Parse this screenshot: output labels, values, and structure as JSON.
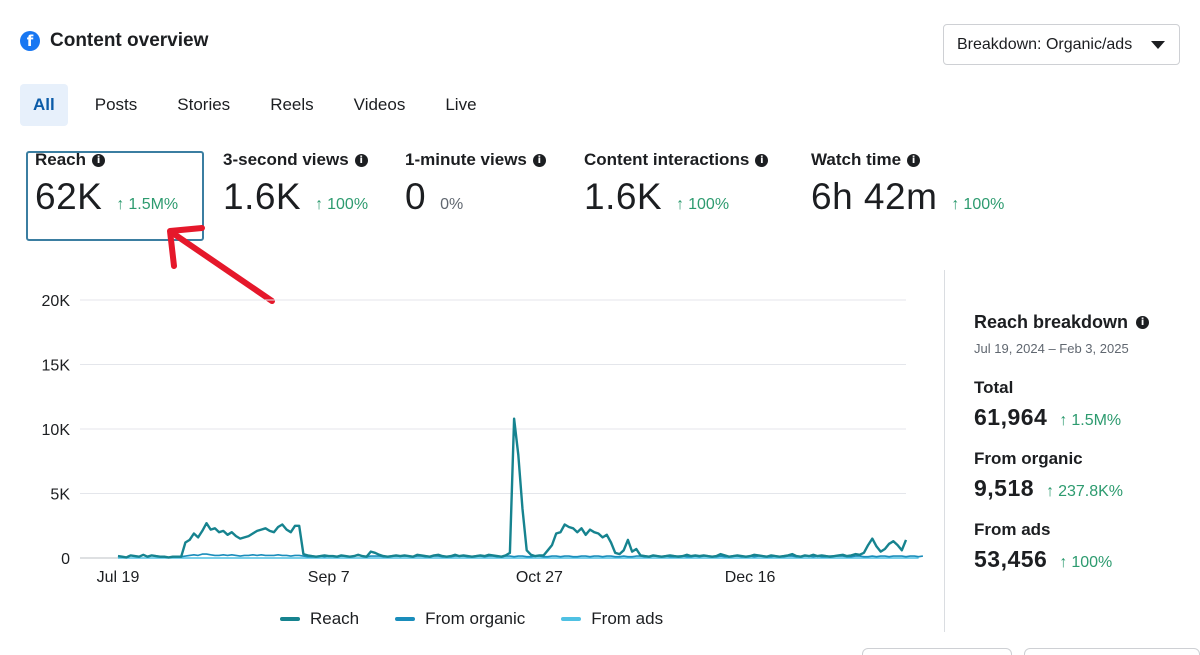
{
  "header": {
    "title": "Content overview",
    "icon": "facebook-icon"
  },
  "breakdown": {
    "label": "Breakdown: Organic/ads"
  },
  "tabs": [
    {
      "label": "All",
      "active": true
    },
    {
      "label": "Posts"
    },
    {
      "label": "Stories"
    },
    {
      "label": "Reels"
    },
    {
      "label": "Videos"
    },
    {
      "label": "Live"
    }
  ],
  "metrics": [
    {
      "label": "Reach",
      "value": "62K",
      "delta": "1.5M%",
      "selected": true
    },
    {
      "label": "3-second views",
      "value": "1.6K",
      "delta": "100%"
    },
    {
      "label": "1-minute views",
      "value": "0",
      "delta": "0%"
    },
    {
      "label": "Content interactions",
      "value": "1.6K",
      "delta": "100%"
    },
    {
      "label": "Watch time",
      "value": "6h 42m",
      "delta": "100%"
    }
  ],
  "side": {
    "title": "Reach breakdown",
    "date_range": "Jul 19, 2024 – Feb 3, 2025",
    "total_label": "Total",
    "total_value": "61,964",
    "total_delta": "1.5M%",
    "organic_label": "From organic",
    "organic_value": "9,518",
    "organic_delta": "237.8K%",
    "ads_label": "From ads",
    "ads_value": "53,456",
    "ads_delta": "100%"
  },
  "colors": {
    "reach": "#16838f",
    "organic": "#1a8dbb",
    "ads": "#4fc1e3",
    "positive": "#2d9b6f",
    "annotation": "#e5182b"
  },
  "chart_data": {
    "type": "line",
    "title": "",
    "xlabel": "",
    "ylabel": "",
    "ylim": [
      0,
      20000
    ],
    "yticks": [
      "0",
      "5K",
      "10K",
      "15K",
      "20K"
    ],
    "xticks": [
      {
        "label": "Jul 19",
        "day": 0
      },
      {
        "label": "Sep 7",
        "day": 50
      },
      {
        "label": "Oct 27",
        "day": 100
      },
      {
        "label": "Dec 16",
        "day": 150
      }
    ],
    "legend": [
      "Reach",
      "From organic",
      "From ads"
    ],
    "series": [
      {
        "name": "Reach",
        "values": [
          150,
          100,
          50,
          200,
          150,
          100,
          250,
          100,
          200,
          150,
          100,
          100,
          50,
          100,
          100,
          100,
          1200,
          1400,
          1900,
          1600,
          2100,
          2700,
          2200,
          2300,
          2000,
          2100,
          1800,
          2000,
          1700,
          1500,
          1600,
          1700,
          1900,
          2100,
          2200,
          2300,
          2100,
          2000,
          2400,
          2600,
          2200,
          2000,
          2500,
          2500,
          300,
          200,
          150,
          100,
          150,
          200,
          150,
          150,
          100,
          200,
          150,
          100,
          150,
          250,
          150,
          100,
          500,
          400,
          250,
          150,
          100,
          150,
          200,
          150,
          200,
          150,
          100,
          250,
          200,
          150,
          100,
          200,
          250,
          150,
          100,
          150,
          250,
          150,
          200,
          150,
          100,
          150,
          200,
          150,
          250,
          200,
          150,
          100,
          200,
          400,
          10800,
          8000,
          3800,
          600,
          250,
          150,
          200,
          200,
          600,
          1000,
          1900,
          2000,
          2600,
          2400,
          2300,
          2000,
          2300,
          1800,
          2200,
          2000,
          1900,
          1600,
          1800,
          1200,
          400,
          300,
          600,
          1400,
          500,
          700,
          200,
          150,
          100,
          200,
          150,
          100,
          150,
          200,
          150,
          100,
          150,
          250,
          150,
          200,
          150,
          200,
          150,
          100,
          150,
          300,
          200,
          100,
          150,
          200,
          150,
          100,
          150,
          250,
          200,
          150,
          100,
          200,
          150,
          100,
          150,
          200,
          300,
          150,
          100,
          200,
          150,
          250,
          150,
          200,
          150,
          100,
          150,
          200,
          250,
          150,
          200,
          300,
          250,
          400,
          1000,
          1500,
          900,
          500,
          700,
          1100,
          1300,
          1000,
          600,
          1400
        ]
      },
      {
        "name": "From organic",
        "values": [
          150,
          100,
          50,
          200,
          150,
          100,
          250,
          100,
          200,
          150,
          100,
          100,
          50,
          100,
          100,
          100,
          150,
          200,
          250,
          200,
          300,
          300,
          250,
          200,
          200,
          250,
          200,
          250,
          200,
          150,
          200,
          200,
          250,
          200,
          250,
          200,
          200,
          200,
          250,
          200,
          200,
          150,
          200,
          200,
          150,
          100,
          100,
          100,
          150,
          100,
          150,
          150,
          100,
          150,
          150,
          100,
          150,
          200,
          150,
          100,
          150,
          150,
          150,
          100,
          100,
          150,
          150,
          150,
          150,
          150,
          100,
          150,
          150,
          100,
          100,
          150,
          150,
          100,
          100,
          100,
          150,
          150,
          150,
          100,
          100,
          150,
          150,
          100,
          150,
          150,
          100,
          100,
          150,
          150,
          100,
          150,
          150,
          100,
          100,
          150,
          150,
          100,
          100,
          150,
          150,
          100,
          150,
          150,
          100,
          100,
          150,
          150,
          100,
          150,
          150,
          100,
          150,
          150,
          100,
          100,
          150,
          100,
          100,
          150,
          150,
          100,
          100,
          150,
          150,
          100,
          150,
          100,
          100,
          150,
          150,
          100,
          100,
          150,
          100,
          150,
          150,
          100,
          100,
          150,
          100,
          100,
          150,
          150,
          100,
          100,
          150,
          100,
          150,
          150,
          100,
          100,
          150,
          100,
          100,
          150,
          150,
          100,
          100,
          150,
          150,
          100,
          150,
          100,
          100,
          150,
          150,
          150,
          150,
          100,
          100,
          150,
          150,
          100,
          100,
          150,
          100,
          150,
          150,
          100,
          150,
          150,
          150,
          100,
          150,
          150,
          100,
          150
        ]
      },
      {
        "name": "From ads",
        "values": [
          0,
          0,
          0,
          0,
          0,
          0,
          0,
          0,
          0,
          0,
          0,
          0,
          0,
          0,
          0,
          0,
          0,
          0,
          0,
          0,
          0,
          0,
          0,
          0,
          0,
          0,
          0,
          0,
          0,
          0,
          0,
          0,
          0,
          0,
          0,
          0,
          0,
          0,
          0,
          0,
          0,
          0,
          0,
          0,
          0,
          0,
          0,
          0,
          0,
          0,
          0,
          0,
          0,
          0,
          0,
          0,
          0,
          0,
          0,
          0,
          0,
          0,
          0,
          0,
          0,
          0,
          0,
          0,
          0,
          0,
          0,
          0,
          0,
          0,
          0,
          0,
          0,
          0,
          0,
          0,
          0,
          0,
          0,
          0,
          0,
          0,
          0,
          0,
          0,
          0,
          0,
          0,
          0,
          0,
          0,
          0,
          0,
          0,
          0,
          0,
          0,
          0,
          0,
          0,
          0,
          0,
          0,
          0,
          0,
          0,
          0,
          0,
          0,
          0,
          0,
          0,
          0,
          0,
          0,
          0,
          0,
          0,
          0,
          0,
          0,
          0,
          0,
          0,
          0,
          0,
          0,
          0,
          0,
          0,
          0,
          0,
          0,
          0,
          0,
          0,
          0,
          0,
          0,
          0,
          0,
          0,
          0,
          0,
          0,
          0,
          0,
          0,
          0,
          0,
          0,
          0,
          0,
          0,
          0,
          0,
          0,
          0,
          0,
          0,
          0,
          0,
          0,
          0,
          0,
          0,
          0,
          0,
          0,
          0,
          0,
          0,
          0,
          0,
          0,
          0,
          0,
          0,
          0,
          0,
          0,
          0,
          0,
          0,
          0,
          0,
          0
        ]
      }
    ]
  }
}
